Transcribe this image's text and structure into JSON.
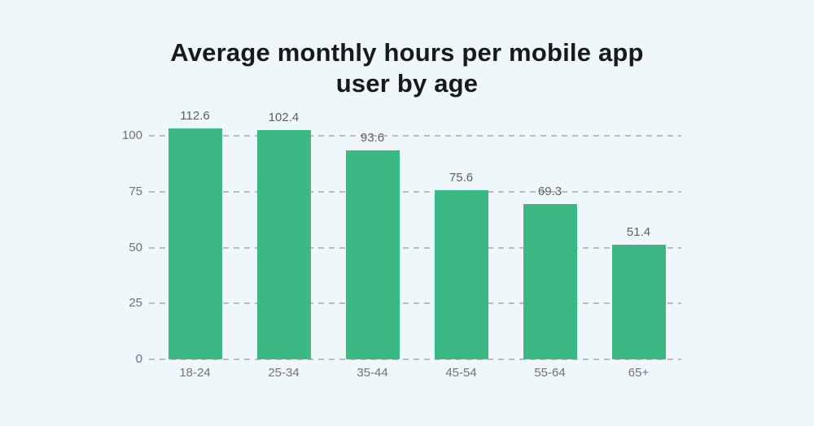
{
  "page": {
    "background_color": "#f0f7fb"
  },
  "chart_data": {
    "type": "bar",
    "title": "Average monthly hours per mobile app user by age",
    "title_lines": [
      "Average monthly hours per mobile app",
      "user by age"
    ],
    "categories": [
      "18-24",
      "25-34",
      "35-44",
      "45-54",
      "55-64",
      "65+"
    ],
    "values": [
      112.6,
      102.4,
      93.6,
      75.6,
      69.3,
      51.4
    ],
    "data_labels": [
      "112.6",
      "102.4",
      "93.6",
      "75.6",
      "69.3",
      "51.4"
    ],
    "xlabel": "",
    "ylabel": "",
    "yticks": [
      0,
      25,
      50,
      75,
      100
    ],
    "ylim": [
      0,
      103.3
    ],
    "grid": "horizontal-dashed",
    "legend": "none",
    "bar_color": "#3cb885",
    "first_bar_clipped_at_plot_top": true
  },
  "style": {
    "title_color": "#16191d",
    "value_label_color": "#5a6066",
    "axis_label_color": "#6d737a",
    "gridline_color": "#b9bdc1"
  }
}
